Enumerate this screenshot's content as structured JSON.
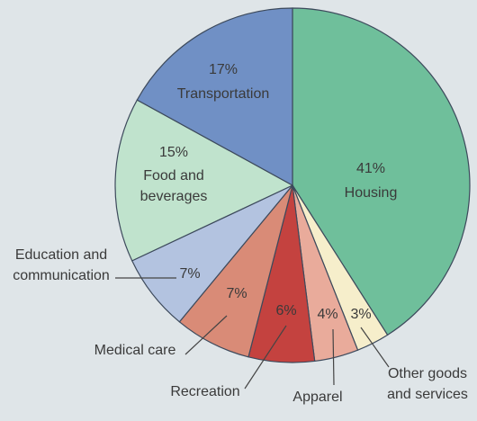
{
  "chart_data": {
    "type": "pie",
    "categories": [
      "Housing",
      "Other goods and services",
      "Apparel",
      "Recreation",
      "Medical care",
      "Education and communication",
      "Food and beverages",
      "Transportation"
    ],
    "values": [
      41,
      3,
      4,
      6,
      7,
      7,
      15,
      17
    ],
    "value_labels": [
      "41%",
      "3%",
      "4%",
      "6%",
      "7%",
      "7%",
      "15%",
      "17%"
    ],
    "colors": [
      "#6fbf9b",
      "#f6eecb",
      "#e9ab9b",
      "#c4423f",
      "#d98b77",
      "#b3c3e0",
      "#c0e3cd",
      "#7090c5"
    ]
  }
}
